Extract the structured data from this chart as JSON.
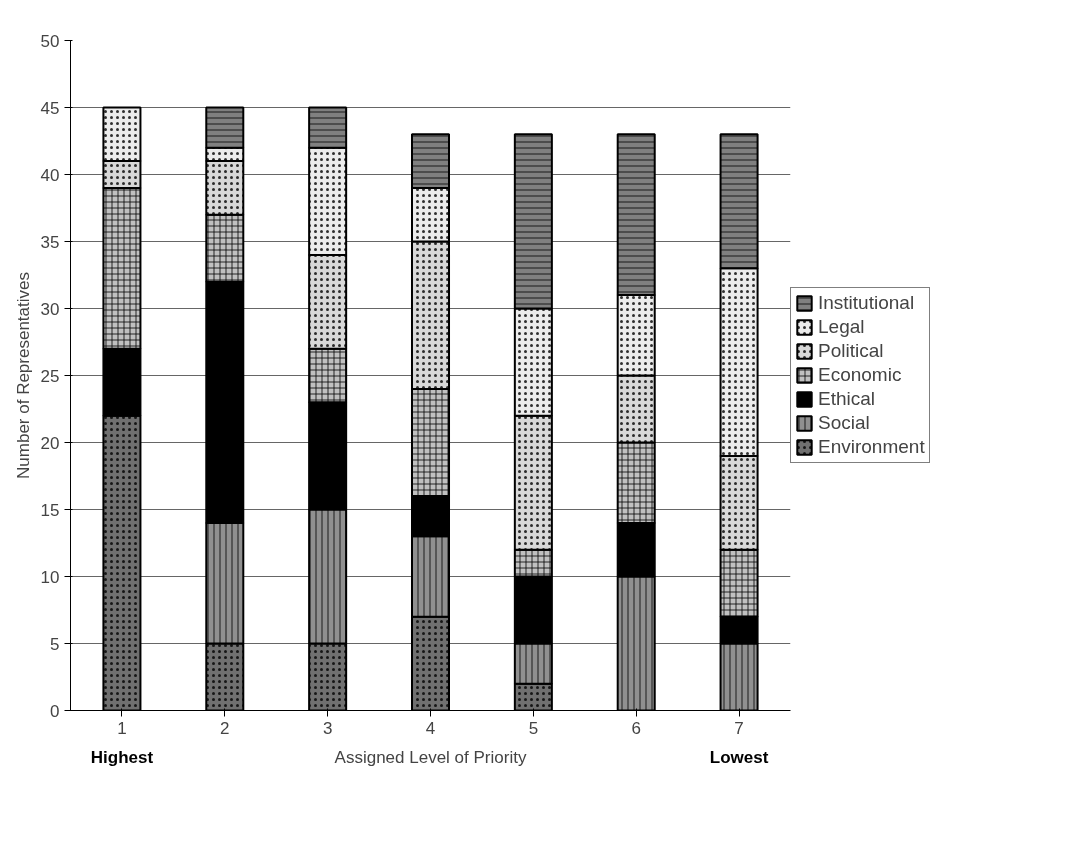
{
  "chart_data": {
    "type": "bar",
    "stacked": true,
    "xlabel": "Assigned Level of Priority",
    "ylabel": "Number of Representatives",
    "categories": [
      "1",
      "2",
      "3",
      "4",
      "5",
      "6",
      "7"
    ],
    "series": [
      {
        "name": "Environment",
        "color": "#707070",
        "values": [
          22,
          5,
          5,
          7,
          2,
          0,
          0
        ]
      },
      {
        "name": "Social",
        "color": "#909090",
        "values": [
          0,
          9,
          10,
          6,
          3,
          10,
          5
        ]
      },
      {
        "name": "Ethical",
        "color": "#000000",
        "values": [
          5,
          18,
          8,
          3,
          5,
          4,
          2
        ]
      },
      {
        "name": "Economic",
        "color": "#c0c0c0",
        "values": [
          12,
          5,
          4,
          8,
          2,
          6,
          5
        ]
      },
      {
        "name": "Political",
        "color": "#d8d8d8",
        "values": [
          2,
          4,
          7,
          11,
          10,
          5,
          7
        ]
      },
      {
        "name": "Legal",
        "color": "#ececec",
        "values": [
          4,
          1,
          8,
          4,
          8,
          6,
          14
        ]
      },
      {
        "name": "Institutional",
        "color": "#808080",
        "values": [
          0,
          3,
          3,
          4,
          13,
          12,
          10
        ]
      }
    ],
    "ylim": [
      0,
      50
    ],
    "yticks": [
      0,
      5,
      10,
      15,
      20,
      25,
      30,
      35,
      40,
      45,
      50
    ],
    "grid": "y",
    "legend": "right",
    "annotations": [
      "Highest",
      "Lowest"
    ]
  }
}
